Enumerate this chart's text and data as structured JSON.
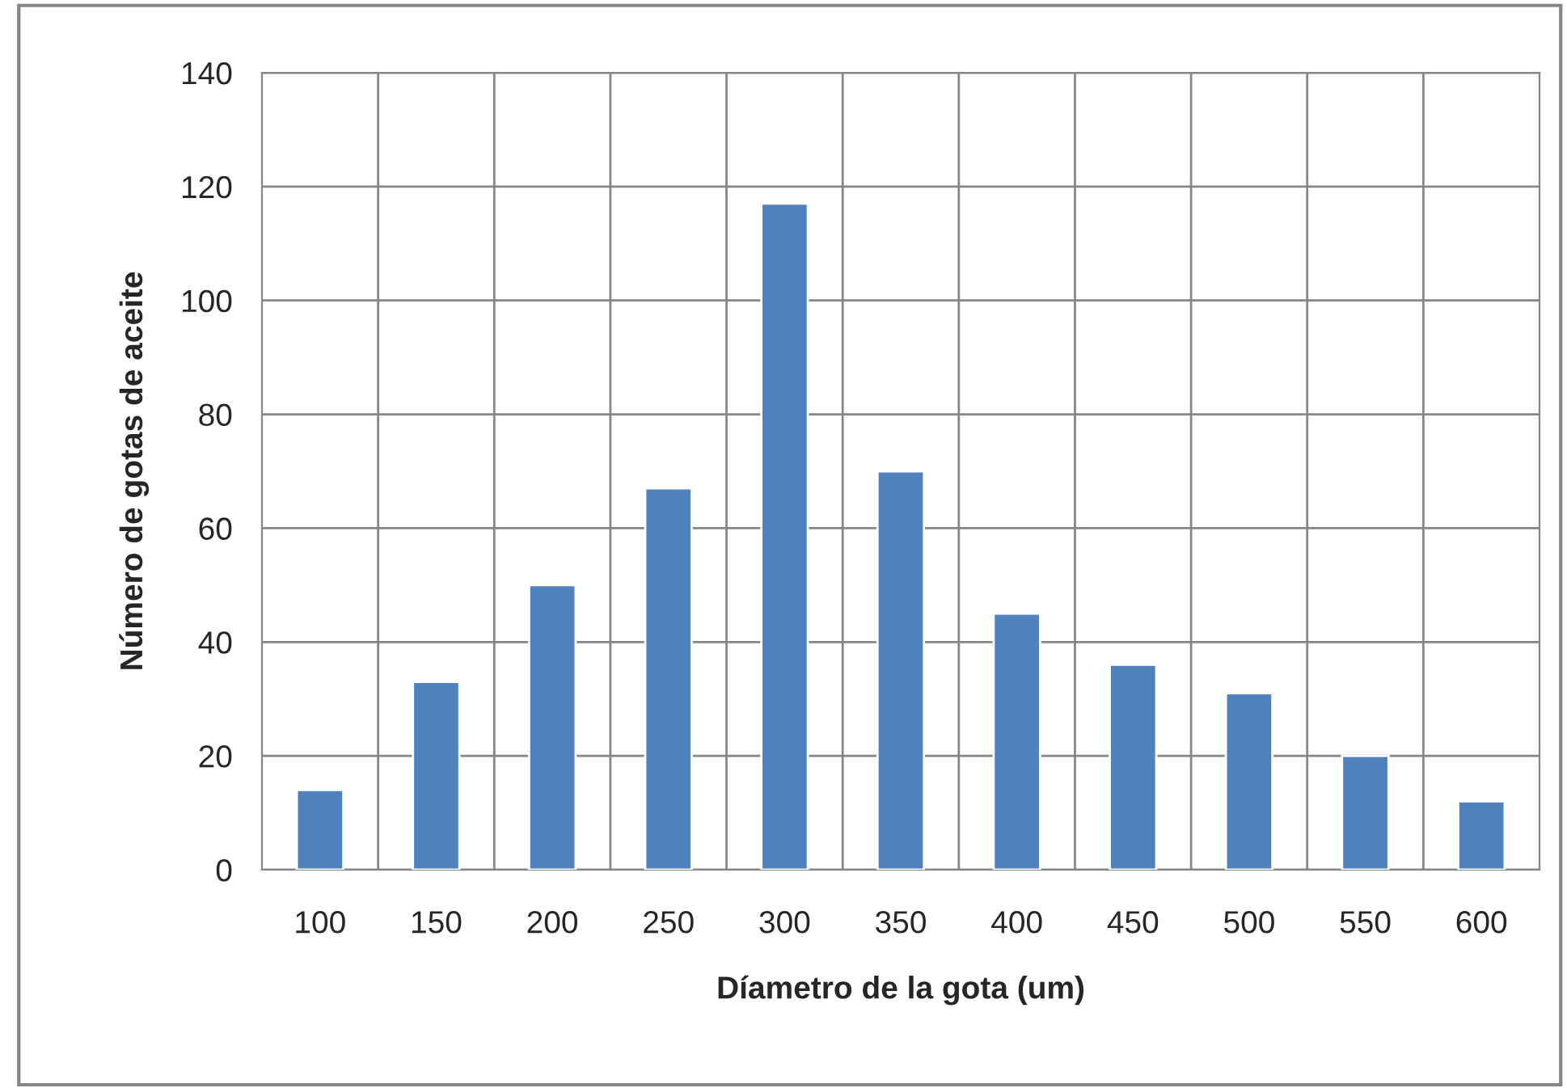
{
  "chart_data": {
    "type": "bar",
    "xlabel": "Díametro de la gota (um)",
    "ylabel": "Número de gotas de aceite",
    "categories": [
      "100",
      "150",
      "200",
      "250",
      "300",
      "350",
      "400",
      "450",
      "500",
      "550",
      "600"
    ],
    "values": [
      14,
      33,
      50,
      67,
      117,
      70,
      45,
      36,
      31,
      20,
      12
    ],
    "color": "#4f81bd",
    "ylim": [
      0,
      140
    ],
    "yticks": [
      0,
      20,
      40,
      60,
      80,
      100,
      120,
      140
    ],
    "grid": true,
    "legend": false
  }
}
